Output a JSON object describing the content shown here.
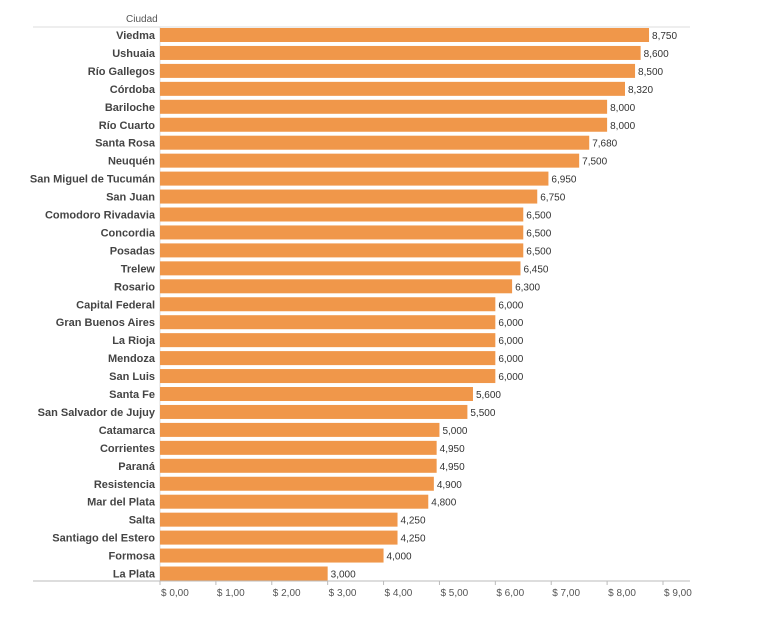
{
  "chart_data": {
    "type": "bar",
    "orientation": "horizontal",
    "row_header": "Ciudad",
    "categories": [
      "Viedma",
      "Ushuaia",
      "Río Gallegos",
      "Córdoba",
      "Bariloche",
      "Río Cuarto",
      "Santa Rosa",
      "Neuquén",
      "San Miguel de Tucumán",
      "San Juan",
      "Comodoro Rivadavia",
      "Concordia",
      "Posadas",
      "Trelew",
      "Rosario",
      "Capital Federal",
      "Gran Buenos Aires",
      "La Rioja",
      "Mendoza",
      "San Luis",
      "Santa Fe",
      "San Salvador de Jujuy",
      "Catamarca",
      "Corrientes",
      "Paraná",
      "Resistencia",
      "Mar del Plata",
      "Salta",
      "Santiago del Estero",
      "Formosa",
      "La Plata"
    ],
    "values": [
      8.75,
      8.6,
      8.5,
      8.32,
      8.0,
      8.0,
      7.68,
      7.5,
      6.95,
      6.75,
      6.5,
      6.5,
      6.5,
      6.45,
      6.3,
      6.0,
      6.0,
      6.0,
      6.0,
      6.0,
      5.6,
      5.5,
      5.0,
      4.95,
      4.95,
      4.9,
      4.8,
      4.25,
      4.25,
      4.0,
      3.0
    ],
    "value_labels": [
      "8,750",
      "8,600",
      "8,500",
      "8,320",
      "8,000",
      "8,000",
      "7,680",
      "7,500",
      "6,950",
      "6,750",
      "6,500",
      "6,500",
      "6,500",
      "6,450",
      "6,300",
      "6,000",
      "6,000",
      "6,000",
      "6,000",
      "6,000",
      "5,600",
      "5,500",
      "5,000",
      "4,950",
      "4,950",
      "4,900",
      "4,800",
      "4,250",
      "4,250",
      "4,000",
      "3,000"
    ],
    "xlim": [
      0,
      9
    ],
    "x_ticks": [
      0,
      1,
      2,
      3,
      4,
      5,
      6,
      7,
      8,
      9
    ],
    "x_tick_labels": [
      "$ 0,00",
      "$ 1,00",
      "$ 2,00",
      "$ 3,00",
      "$ 4,00",
      "$ 5,00",
      "$ 6,00",
      "$ 7,00",
      "$ 8,00",
      "$ 9,00"
    ],
    "bar_color": "#f0974a",
    "grid": false,
    "legend": "none"
  }
}
